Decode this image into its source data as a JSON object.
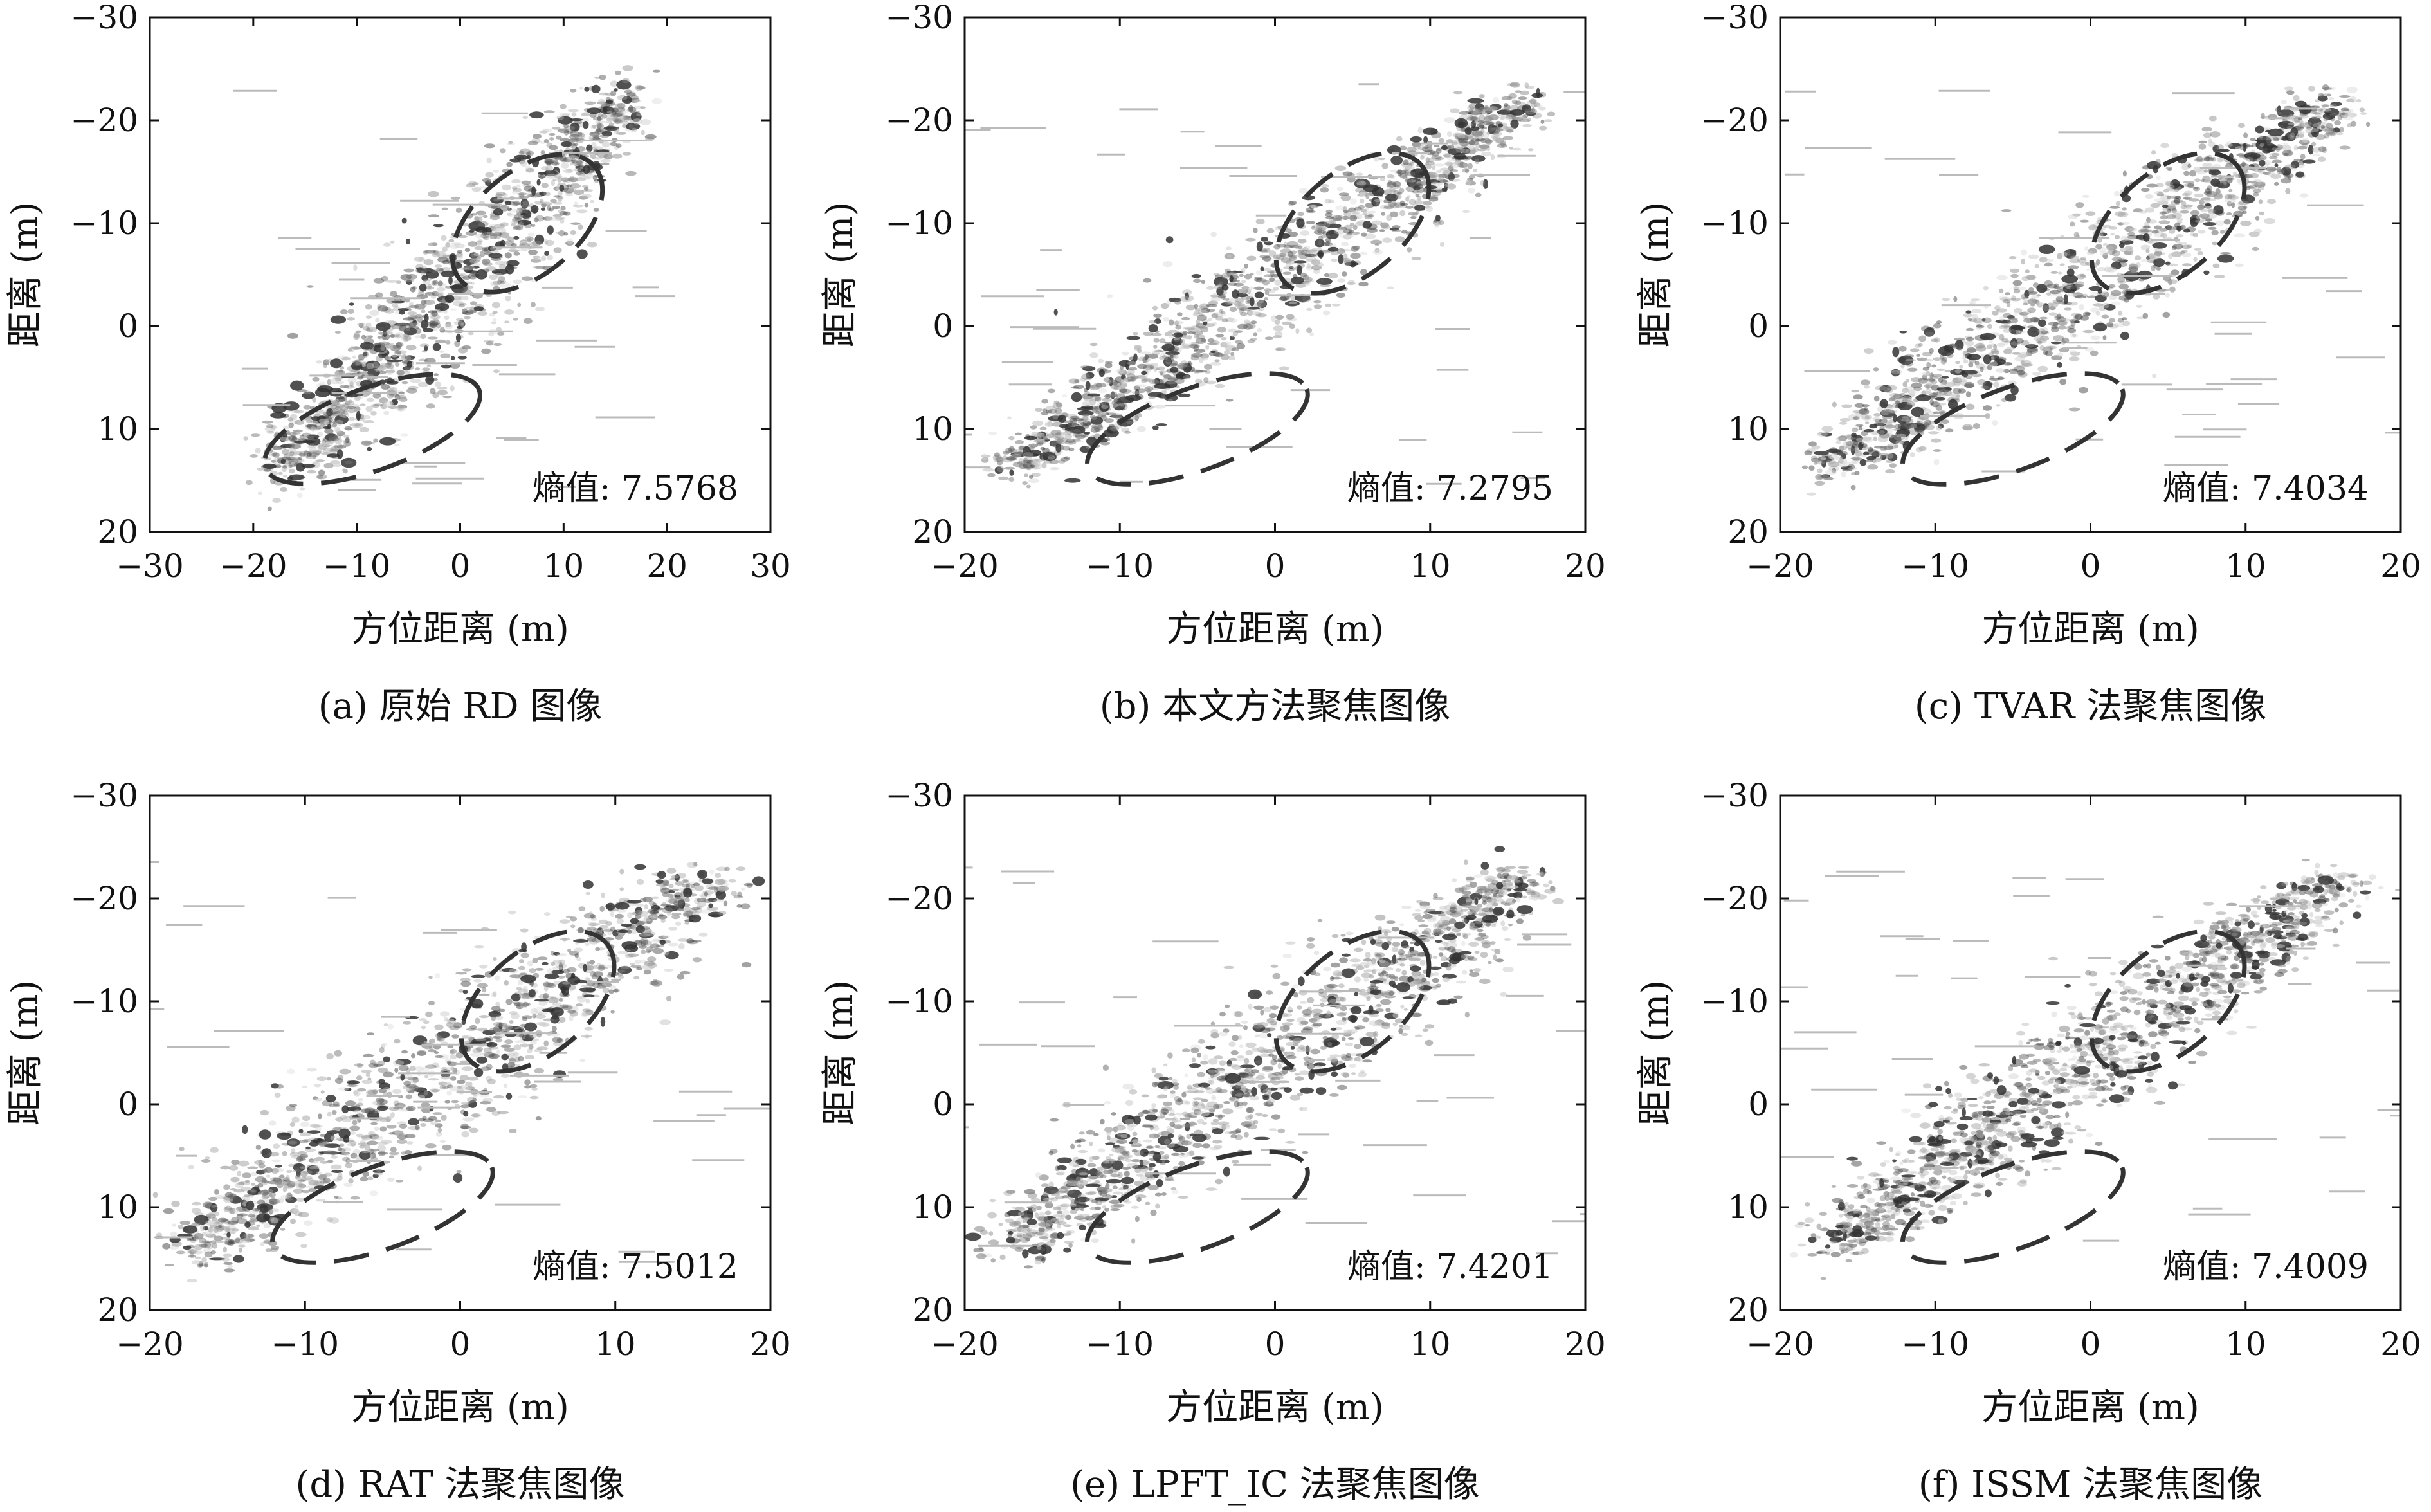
{
  "chart_data": [
    {
      "id": "a",
      "type": "scatter",
      "caption": "(a) 原始 RD 图像",
      "xlabel": "方位距离 (m)",
      "ylabel": "距离 (m)",
      "xlim": [
        -30,
        30
      ],
      "xticks": [
        "−30",
        "−20",
        "−10",
        "0",
        "10",
        "20",
        "30"
      ],
      "ylim": [
        -30,
        20
      ],
      "yticks": [
        "−30",
        "−20",
        "−10",
        "0",
        "10",
        "20"
      ],
      "annotation": "熵值: 7.5768",
      "entropy": 7.5768,
      "ellipses": [
        {
          "cx": 6.5,
          "cy": -10,
          "rx": 8.5,
          "ry": 5.0,
          "angle": -40
        },
        {
          "cx": -8.5,
          "cy": 10,
          "rx": 11.0,
          "ry": 4.0,
          "angle": -20
        }
      ]
    },
    {
      "id": "b",
      "type": "scatter",
      "caption": "(b) 本文方法聚焦图像",
      "xlabel": "方位距离 (m)",
      "ylabel": "距离 (m)",
      "xlim": [
        -20,
        20
      ],
      "xticks": [
        "−20",
        "−10",
        "0",
        "10",
        "20"
      ],
      "ylim": [
        -30,
        20
      ],
      "yticks": [
        "−30",
        "−20",
        "−10",
        "0",
        "10",
        "20"
      ],
      "annotation": "熵值: 7.2795",
      "entropy": 7.2795,
      "ellipses": [
        {
          "cx": 5.0,
          "cy": -10,
          "rx": 5.8,
          "ry": 5.0,
          "angle": -40
        },
        {
          "cx": -5.0,
          "cy": 10,
          "rx": 7.5,
          "ry": 4.0,
          "angle": -20
        }
      ]
    },
    {
      "id": "c",
      "type": "scatter",
      "caption": "(c) TVAR 法聚焦图像",
      "xlabel": "方位距离 (m)",
      "ylabel": "距离 (m)",
      "xlim": [
        -20,
        20
      ],
      "xticks": [
        "−20",
        "−10",
        "0",
        "10",
        "20"
      ],
      "ylim": [
        -30,
        20
      ],
      "yticks": [
        "−30",
        "−20",
        "−10",
        "0",
        "10",
        "20"
      ],
      "annotation": "熵值: 7.4034",
      "entropy": 7.4034,
      "ellipses": [
        {
          "cx": 5.0,
          "cy": -10,
          "rx": 5.8,
          "ry": 5.0,
          "angle": -40
        },
        {
          "cx": -5.0,
          "cy": 10,
          "rx": 7.5,
          "ry": 4.0,
          "angle": -20
        }
      ]
    },
    {
      "id": "d",
      "type": "scatter",
      "caption": "(d) RAT 法聚焦图像",
      "xlabel": "方位距离 (m)",
      "ylabel": "距离 (m)",
      "xlim": [
        -20,
        20
      ],
      "xticks": [
        "−20",
        "−10",
        "0",
        "10",
        "20"
      ],
      "ylim": [
        -30,
        20
      ],
      "yticks": [
        "−30",
        "−20",
        "−10",
        "0",
        "10",
        "20"
      ],
      "annotation": "熵值: 7.5012",
      "entropy": 7.5012,
      "ellipses": [
        {
          "cx": 5.0,
          "cy": -10,
          "rx": 5.8,
          "ry": 5.0,
          "angle": -40
        },
        {
          "cx": -5.0,
          "cy": 10,
          "rx": 7.5,
          "ry": 4.0,
          "angle": -20
        }
      ]
    },
    {
      "id": "e",
      "type": "scatter",
      "caption": "(e) LPFT_IC 法聚焦图像",
      "xlabel": "方位距离 (m)",
      "ylabel": "距离 (m)",
      "xlim": [
        -20,
        20
      ],
      "xticks": [
        "−20",
        "−10",
        "0",
        "10",
        "20"
      ],
      "ylim": [
        -30,
        20
      ],
      "yticks": [
        "−30",
        "−20",
        "−10",
        "0",
        "10",
        "20"
      ],
      "annotation": "熵值: 7.4201",
      "entropy": 7.4201,
      "ellipses": [
        {
          "cx": 5.0,
          "cy": -10,
          "rx": 5.8,
          "ry": 5.0,
          "angle": -40
        },
        {
          "cx": -5.0,
          "cy": 10,
          "rx": 7.5,
          "ry": 4.0,
          "angle": -20
        }
      ]
    },
    {
      "id": "f",
      "type": "scatter",
      "caption": "(f) ISSM 法聚焦图像",
      "xlabel": "方位距离 (m)",
      "ylabel": "距离 (m)",
      "xlim": [
        -20,
        20
      ],
      "xticks": [
        "−20",
        "−10",
        "0",
        "10",
        "20"
      ],
      "ylim": [
        -30,
        20
      ],
      "yticks": [
        "−30",
        "−20",
        "−10",
        "0",
        "10",
        "20"
      ],
      "annotation": "熵值: 7.4009",
      "entropy": 7.4009,
      "ellipses": [
        {
          "cx": 5.0,
          "cy": -10,
          "rx": 5.8,
          "ry": 5.0,
          "angle": -40
        },
        {
          "cx": -5.0,
          "cy": 10,
          "rx": 7.5,
          "ry": 4.0,
          "angle": -20
        }
      ]
    }
  ]
}
